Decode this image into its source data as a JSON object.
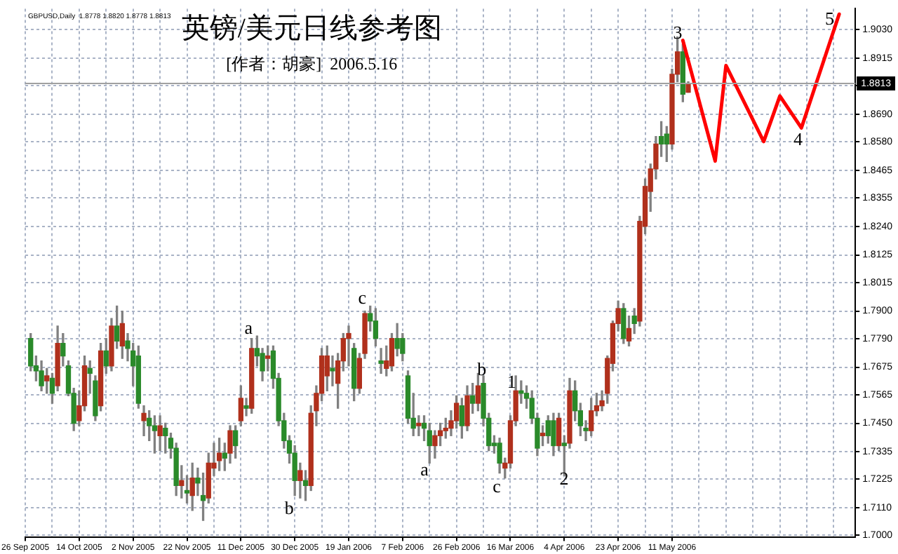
{
  "chart_data": {
    "type": "candlestick",
    "title": "英镑/美元日线参考图",
    "subtitle": "[作者：胡豪]  2006.5.16",
    "annotations": [
      "GBPUSD,Daily  1.8778 1.8820 1.8778 1.8813",
      "a",
      "b",
      "c",
      "a",
      "b",
      "c",
      "1",
      "2",
      "3",
      "4",
      "5"
    ],
    "categories": [
      "26 Sep 2005",
      null,
      null,
      null,
      null,
      null,
      null,
      null,
      null,
      null,
      "14 Oct 2005",
      null,
      null,
      null,
      null,
      null,
      null,
      null,
      null,
      null,
      "2 Nov 2005",
      null,
      null,
      null,
      null,
      null,
      null,
      null,
      null,
      null,
      "22 Nov 2005",
      null,
      null,
      null,
      null,
      null,
      null,
      null,
      null,
      null,
      "11 Dec 2005",
      null,
      null,
      null,
      null,
      null,
      null,
      null,
      null,
      null,
      "30 Dec 2005",
      null,
      null,
      null,
      null,
      null,
      null,
      null,
      null,
      null,
      "19 Jan 2006",
      null,
      null,
      null,
      null,
      null,
      null,
      null,
      null,
      null,
      "7 Feb 2006",
      null,
      null,
      null,
      null,
      null,
      null,
      null,
      null,
      null,
      "26 Feb 2006",
      null,
      null,
      null,
      null,
      null,
      null,
      null,
      null,
      null,
      "16 Mar 2006",
      null,
      null,
      null,
      null,
      null,
      null,
      null,
      null,
      null,
      "4 Apr 2006",
      null,
      null,
      null,
      null,
      null,
      null,
      null,
      null,
      null,
      "23 Apr 2006",
      null,
      null,
      null,
      null,
      null,
      null,
      null,
      null,
      null,
      "11 May 2006",
      null,
      null,
      null,
      null,
      null,
      null,
      null,
      null,
      null,
      null,
      null,
      null,
      null,
      null,
      null,
      null,
      null,
      null,
      null,
      null,
      null,
      null,
      null,
      null,
      null,
      null,
      null,
      null,
      null,
      null,
      null,
      null,
      null,
      null
    ],
    "ohlc": [
      null,
      [
        1.779,
        1.781,
        1.766,
        1.768
      ],
      [
        1.768,
        1.772,
        1.762,
        1.766
      ],
      [
        1.766,
        1.77,
        1.758,
        1.76
      ],
      [
        1.762,
        1.767,
        1.757,
        1.764
      ],
      [
        1.763,
        1.765,
        1.753,
        1.757
      ],
      [
        1.76,
        1.784,
        1.758,
        1.777
      ],
      [
        1.777,
        1.781,
        1.768,
        1.772
      ],
      [
        1.768,
        1.77,
        1.756,
        1.757
      ],
      [
        1.757,
        1.759,
        1.742,
        1.745
      ],
      [
        1.746,
        1.758,
        1.744,
        1.752
      ],
      [
        1.752,
        1.772,
        1.75,
        1.768
      ],
      [
        1.767,
        1.77,
        1.757,
        1.765
      ],
      [
        1.762,
        1.764,
        1.746,
        1.748
      ],
      [
        1.752,
        1.777,
        1.75,
        1.774
      ],
      [
        1.774,
        1.779,
        1.765,
        1.768
      ],
      [
        1.768,
        1.787,
        1.766,
        1.784
      ],
      [
        1.784,
        1.792,
        1.775,
        1.778
      ],
      [
        1.776,
        1.79,
        1.771,
        1.785
      ],
      [
        1.778,
        1.781,
        1.77,
        1.775
      ],
      [
        1.774,
        1.777,
        1.76,
        1.768
      ],
      [
        1.772,
        1.776,
        1.751,
        1.753
      ],
      [
        1.746,
        1.752,
        1.74,
        1.749
      ],
      [
        1.747,
        1.75,
        1.738,
        1.744
      ],
      [
        1.744,
        1.748,
        1.733,
        1.742
      ],
      [
        1.74,
        1.748,
        1.734,
        1.744
      ],
      [
        1.743,
        1.745,
        1.733,
        1.74
      ],
      [
        1.739,
        1.741,
        1.731,
        1.735
      ],
      [
        1.735,
        1.737,
        1.716,
        1.72
      ],
      [
        1.72,
        1.728,
        1.715,
        1.722
      ],
      [
        1.718,
        1.724,
        1.713,
        1.717
      ],
      [
        1.716,
        1.729,
        1.71,
        1.723
      ],
      [
        1.723,
        1.727,
        1.716,
        1.721
      ],
      [
        1.716,
        1.725,
        1.706,
        1.714
      ],
      [
        1.715,
        1.733,
        1.713,
        1.729
      ],
      [
        1.727,
        1.737,
        1.724,
        1.729
      ],
      [
        1.73,
        1.739,
        1.726,
        1.733
      ],
      [
        1.733,
        1.737,
        1.726,
        1.731
      ],
      [
        1.733,
        1.744,
        1.729,
        1.742
      ],
      [
        1.742,
        1.744,
        1.731,
        1.736
      ],
      [
        1.746,
        1.76,
        1.744,
        1.755
      ],
      [
        1.752,
        1.755,
        1.748,
        1.751
      ],
      [
        1.751,
        1.779,
        1.749,
        1.775
      ],
      [
        1.775,
        1.78,
        1.768,
        1.772
      ],
      [
        1.773,
        1.775,
        1.762,
        1.766
      ],
      [
        1.771,
        1.776,
        1.766,
        1.772
      ],
      [
        1.774,
        1.776,
        1.759,
        1.763
      ],
      [
        1.763,
        1.765,
        1.744,
        1.746
      ],
      [
        1.746,
        1.749,
        1.735,
        1.738
      ],
      [
        1.738,
        1.74,
        1.729,
        1.733
      ],
      [
        1.733,
        1.736,
        1.716,
        1.722
      ],
      [
        1.722,
        1.729,
        1.715,
        1.726
      ],
      [
        1.722,
        1.726,
        1.714,
        1.72
      ],
      [
        1.72,
        1.752,
        1.718,
        1.749
      ],
      [
        1.75,
        1.76,
        1.744,
        1.757
      ],
      [
        1.757,
        1.775,
        1.754,
        1.772
      ],
      [
        1.764,
        1.776,
        1.758,
        1.772
      ],
      [
        1.767,
        1.772,
        1.76,
        1.766
      ],
      [
        1.761,
        1.773,
        1.751,
        1.77
      ],
      [
        1.77,
        1.781,
        1.766,
        1.779
      ],
      [
        1.779,
        1.784,
        1.768,
        1.781
      ],
      [
        1.775,
        1.777,
        1.754,
        1.759
      ],
      [
        1.759,
        1.773,
        1.757,
        1.771
      ],
      [
        1.773,
        1.79,
        1.771,
        1.789
      ],
      [
        1.789,
        1.792,
        1.782,
        1.786
      ],
      [
        1.786,
        1.791,
        1.776,
        1.779
      ],
      [
        1.77,
        1.775,
        1.765,
        1.769
      ],
      [
        1.767,
        1.776,
        1.764,
        1.77
      ],
      [
        1.768,
        1.781,
        1.766,
        1.779
      ],
      [
        1.779,
        1.785,
        1.772,
        1.775
      ],
      [
        1.779,
        1.781,
        1.77,
        1.773
      ],
      [
        1.764,
        1.766,
        1.745,
        1.747
      ],
      [
        1.747,
        1.757,
        1.74,
        1.743
      ],
      [
        1.744,
        1.748,
        1.74,
        1.745
      ],
      [
        1.745,
        1.748,
        1.738,
        1.743
      ],
      [
        1.742,
        1.745,
        1.729,
        1.736
      ],
      [
        1.736,
        1.742,
        1.731,
        1.74
      ],
      [
        1.74,
        1.745,
        1.736,
        1.742
      ],
      [
        1.742,
        1.747,
        1.739,
        1.743
      ],
      [
        1.743,
        1.75,
        1.74,
        1.746
      ],
      [
        1.746,
        1.756,
        1.743,
        1.753
      ],
      [
        1.752,
        1.755,
        1.739,
        1.744
      ],
      [
        1.744,
        1.76,
        1.742,
        1.756
      ],
      [
        1.756,
        1.761,
        1.749,
        1.753
      ],
      [
        1.753,
        1.765,
        1.75,
        1.76
      ],
      [
        1.761,
        1.764,
        1.744,
        1.747
      ],
      [
        1.747,
        1.749,
        1.734,
        1.736
      ],
      [
        1.737,
        1.74,
        1.733,
        1.736
      ],
      [
        1.737,
        1.739,
        1.725,
        1.729
      ],
      [
        1.727,
        1.731,
        1.723,
        1.729
      ],
      [
        1.729,
        1.748,
        1.727,
        1.746
      ],
      [
        1.746,
        1.764,
        1.744,
        1.758
      ],
      [
        1.758,
        1.762,
        1.753,
        1.757
      ],
      [
        1.757,
        1.76,
        1.751,
        1.755
      ],
      [
        1.755,
        1.758,
        1.745,
        1.747
      ],
      [
        1.747,
        1.749,
        1.732,
        1.735
      ],
      [
        1.74,
        1.744,
        1.736,
        1.741
      ],
      [
        1.746,
        1.748,
        1.737,
        1.74
      ],
      [
        1.746,
        1.749,
        1.732,
        1.736
      ],
      [
        1.736,
        1.749,
        1.734,
        1.747
      ],
      [
        1.737,
        1.74,
        1.724,
        1.736
      ],
      [
        1.737,
        1.763,
        1.735,
        1.758
      ],
      [
        1.758,
        1.762,
        1.746,
        1.75
      ],
      [
        1.75,
        1.753,
        1.74,
        1.744
      ],
      [
        1.743,
        1.746,
        1.738,
        1.742
      ],
      [
        1.742,
        1.755,
        1.74,
        1.75
      ],
      [
        1.75,
        1.757,
        1.748,
        1.752
      ],
      [
        1.752,
        1.758,
        1.75,
        1.754
      ],
      [
        1.757,
        1.772,
        1.753,
        1.771
      ],
      [
        1.769,
        1.786,
        1.766,
        1.785
      ],
      [
        1.785,
        1.794,
        1.782,
        1.791
      ],
      [
        1.791,
        1.793,
        1.777,
        1.779
      ],
      [
        1.778,
        1.788,
        1.776,
        1.783
      ],
      [
        1.788,
        1.791,
        1.781,
        1.785
      ],
      [
        1.786,
        1.828,
        1.784,
        1.826
      ],
      [
        1.824,
        1.843,
        1.821,
        1.84
      ],
      [
        1.838,
        1.849,
        1.83,
        1.847
      ],
      [
        1.847,
        1.86,
        1.843,
        1.857
      ],
      [
        1.86,
        1.866,
        1.852,
        1.857
      ],
      [
        1.861,
        1.864,
        1.85,
        1.857
      ],
      [
        1.857,
        1.887,
        1.855,
        1.885
      ],
      [
        1.885,
        1.9,
        1.882,
        1.894
      ],
      [
        1.894,
        1.897,
        1.874,
        1.877
      ],
      [
        1.8778,
        1.882,
        1.8778,
        1.8813
      ],
      null,
      null,
      null,
      null,
      null,
      null,
      null,
      null,
      null,
      null,
      null,
      null,
      null,
      null,
      null,
      null,
      null,
      null,
      null,
      null,
      null,
      null,
      null,
      null,
      null,
      null,
      null,
      null,
      null,
      null,
      null
    ],
    "colors": [
      null,
      "#2a8a2a",
      "#2a8a2a",
      "#2a8a2a",
      "#b0301c",
      "#2a8a2a",
      "#b0301c",
      "#2a8a2a",
      "#2a8a2a",
      "#2a8a2a",
      "#b0301c",
      "#b0301c",
      "#2a8a2a",
      "#2a8a2a",
      "#b0301c",
      "#2a8a2a",
      "#b0301c",
      "#2a8a2a",
      "#b0301c",
      "#2a8a2a",
      "#2a8a2a",
      "#2a8a2a",
      "#b0301c",
      "#2a8a2a",
      "#2a8a2a",
      "#b0301c",
      "#2a8a2a",
      "#2a8a2a",
      "#2a8a2a",
      "#b0301c",
      "#2a8a2a",
      "#b0301c",
      "#2a8a2a",
      "#2a8a2a",
      "#b0301c",
      "#b0301c",
      "#b0301c",
      "#2a8a2a",
      "#b0301c",
      "#2a8a2a",
      "#b0301c",
      "#2a8a2a",
      "#b0301c",
      "#2a8a2a",
      "#2a8a2a",
      "#b0301c",
      "#2a8a2a",
      "#2a8a2a",
      "#2a8a2a",
      "#2a8a2a",
      "#2a8a2a",
      "#b0301c",
      "#2a8a2a",
      "#b0301c",
      "#b0301c",
      "#b0301c",
      "#b0301c",
      "#2a8a2a",
      "#b0301c",
      "#b0301c",
      "#b0301c",
      "#2a8a2a",
      "#b0301c",
      "#b0301c",
      "#2a8a2a",
      "#2a8a2a",
      "#2a8a2a",
      "#b0301c",
      "#b0301c",
      "#2a8a2a",
      "#2a8a2a",
      "#2a8a2a",
      "#2a8a2a",
      "#b0301c",
      "#2a8a2a",
      "#2a8a2a",
      "#b0301c",
      "#b0301c",
      "#b0301c",
      "#b0301c",
      "#b0301c",
      "#2a8a2a",
      "#b0301c",
      "#2a8a2a",
      "#b0301c",
      "#2a8a2a",
      "#2a8a2a",
      "#2a8a2a",
      "#2a8a2a",
      "#b0301c",
      "#b0301c",
      "#b0301c",
      "#2a8a2a",
      "#2a8a2a",
      "#2a8a2a",
      "#2a8a2a",
      "#b0301c",
      "#2a8a2a",
      "#2a8a2a",
      "#b0301c",
      "#2a8a2a",
      "#b0301c",
      "#2a8a2a",
      "#2a8a2a",
      "#2a8a2a",
      "#b0301c",
      "#b0301c",
      "#b0301c",
      "#b0301c",
      "#b0301c",
      "#b0301c",
      "#2a8a2a",
      "#b0301c",
      "#2a8a2a",
      "#b0301c",
      "#b0301c",
      "#b0301c",
      "#b0301c",
      "#2a8a2a",
      "#2a8a2a",
      "#b0301c",
      "#b0301c",
      "#2a8a2a",
      "#b0301c",
      null,
      null,
      null,
      null,
      null,
      null,
      null,
      null,
      null,
      null,
      null,
      null,
      null,
      null,
      null,
      null,
      null,
      null,
      null,
      null,
      null,
      null,
      null,
      null,
      null,
      null,
      null,
      null,
      null,
      null,
      null
    ],
    "series": [
      {
        "type": "line",
        "color": "#ff0000",
        "values": [
          null,
          null,
          null,
          null,
          null,
          null,
          null,
          null,
          null,
          null,
          null,
          null,
          null,
          null,
          null,
          null,
          null,
          null,
          null,
          null,
          null,
          null,
          null,
          null,
          null,
          null,
          null,
          null,
          null,
          null,
          null,
          null,
          null,
          null,
          null,
          null,
          null,
          null,
          null,
          null,
          null,
          null,
          null,
          null,
          null,
          null,
          null,
          null,
          null,
          null,
          null,
          null,
          null,
          null,
          null,
          null,
          null,
          null,
          null,
          null,
          null,
          null,
          null,
          null,
          null,
          null,
          null,
          null,
          null,
          null,
          null,
          null,
          null,
          null,
          null,
          null,
          null,
          null,
          null,
          null,
          null,
          null,
          null,
          null,
          null,
          null,
          null,
          null,
          null,
          null,
          null,
          null,
          null,
          null,
          null,
          null,
          null,
          null,
          null,
          null,
          null,
          null,
          null,
          null,
          null,
          null,
          null,
          null,
          null,
          null,
          null,
          null,
          null,
          null,
          null,
          null,
          null,
          null,
          null,
          null,
          null,
          null,
          1.8986,
          null,
          null,
          null,
          null,
          null,
          1.8502,
          null,
          1.8885,
          null,
          null,
          null,
          null,
          null,
          null,
          1.858,
          null,
          null,
          1.8763,
          null,
          null,
          null,
          1.8635,
          null,
          null,
          null,
          null,
          null,
          null,
          1.9091,
          null,
          null,
          null
        ]
      }
    ],
    "ylim": [
      1.6994,
      1.9113
    ],
    "yticks": [
      {
        "value": 1.7,
        "label": "1.7000"
      },
      {
        "value": 1.711,
        "label": "1.7110"
      },
      1.7225,
      1.7335,
      {
        "value": 1.745,
        "label": "1.7450"
      },
      1.7565,
      1.7675,
      {
        "value": 1.779,
        "label": "1.7790"
      },
      {
        "value": 1.79,
        "label": "1.7900"
      },
      1.8015,
      1.8125,
      {
        "value": 1.824,
        "label": "1.8240"
      },
      1.8355,
      1.8465,
      {
        "value": 1.858,
        "label": "1.8580"
      },
      {
        "value": 1.869,
        "label": "1.8690"
      },
      {
        "value": 1.8805,
        "label": null
      },
      1.8915,
      {
        "value": 1.903,
        "label": "1.9030"
      }
    ],
    "ref_lines": [
      {
        "axis": "y",
        "value": 1.8813,
        "label": "1.8813",
        "color": "#a0a0a0"
      }
    ],
    "grid": true,
    "legend": false
  }
}
